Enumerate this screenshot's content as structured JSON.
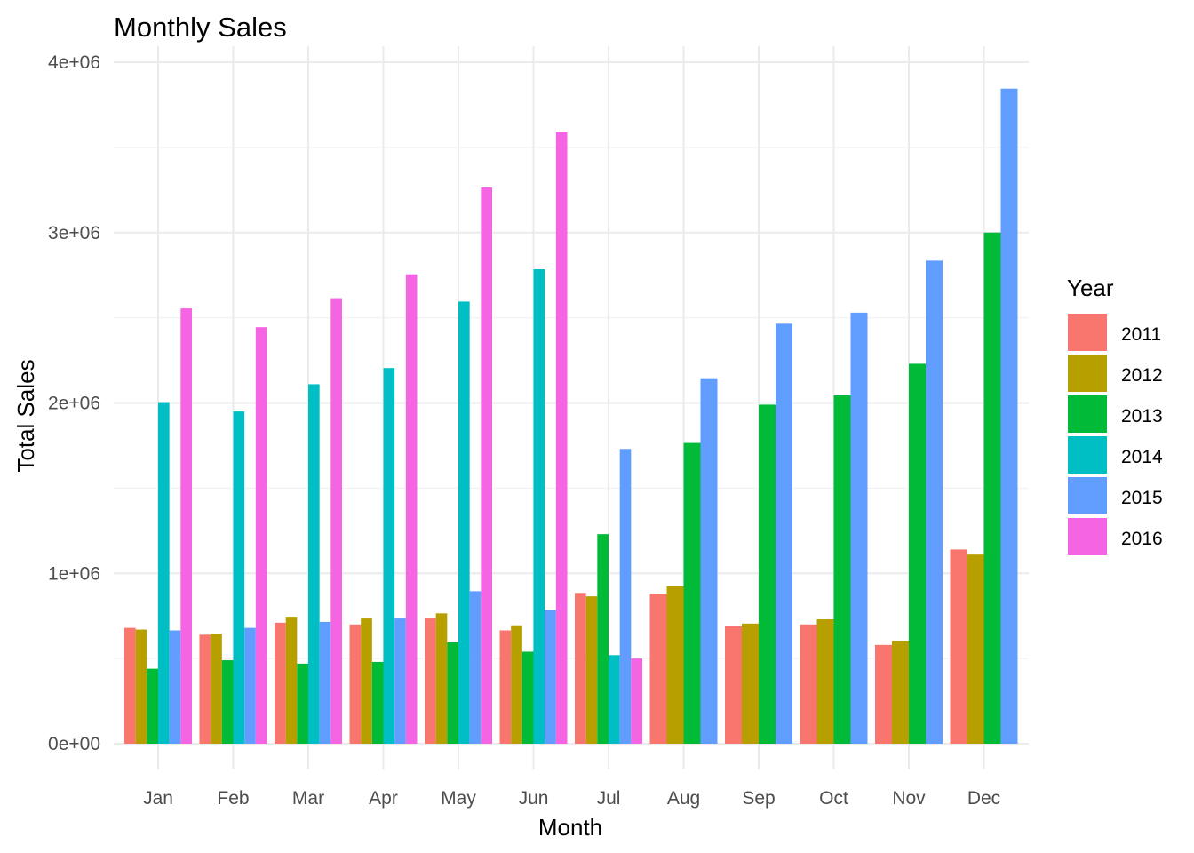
{
  "chart_data": {
    "type": "bar",
    "title": "Monthly Sales",
    "xlabel": "Month",
    "ylabel": "Total Sales",
    "ylim": [
      0,
      4000000
    ],
    "yticks": [
      0,
      1000000,
      2000000,
      3000000,
      4000000
    ],
    "ytick_labels": [
      "0e+00",
      "1e+06",
      "2e+06",
      "3e+06",
      "4e+06"
    ],
    "categories": [
      "Jan",
      "Feb",
      "Mar",
      "Apr",
      "May",
      "Jun",
      "Jul",
      "Aug",
      "Sep",
      "Oct",
      "Nov",
      "Dec"
    ],
    "grid": true,
    "legend": {
      "title": "Year",
      "position": "right"
    },
    "series": [
      {
        "name": "2011",
        "color": "#F8766D",
        "values": [
          680000,
          640000,
          710000,
          700000,
          735000,
          665000,
          885000,
          880000,
          690000,
          700000,
          580000,
          1140000
        ]
      },
      {
        "name": "2012",
        "color": "#B79F00",
        "values": [
          670000,
          645000,
          745000,
          735000,
          765000,
          695000,
          865000,
          925000,
          705000,
          730000,
          605000,
          1110000
        ]
      },
      {
        "name": "2013",
        "color": "#00BA38",
        "values": [
          440000,
          490000,
          470000,
          480000,
          595000,
          540000,
          1230000,
          1765000,
          1990000,
          2045000,
          2230000,
          3000000
        ]
      },
      {
        "name": "2014",
        "color": "#00BFC4",
        "values": [
          2005000,
          1950000,
          2110000,
          2205000,
          2595000,
          2785000,
          520000,
          null,
          null,
          null,
          null,
          null
        ]
      },
      {
        "name": "2015",
        "color": "#619CFF",
        "values": [
          665000,
          680000,
          715000,
          735000,
          895000,
          785000,
          1730000,
          2145000,
          2465000,
          2530000,
          2835000,
          3845000
        ]
      },
      {
        "name": "2016",
        "color": "#F564E3",
        "values": [
          2555000,
          2445000,
          2615000,
          2755000,
          3265000,
          3590000,
          500000,
          null,
          null,
          null,
          null,
          null
        ]
      }
    ]
  }
}
